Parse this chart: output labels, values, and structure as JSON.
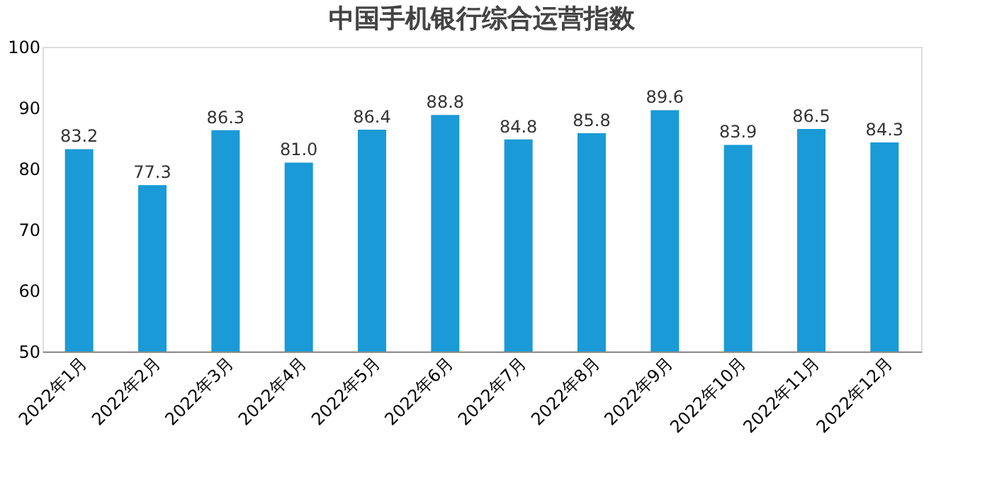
{
  "chart_data": {
    "type": "bar",
    "title": "中国手机银行综合运营指数",
    "categories": [
      "2022年1月",
      "2022年2月",
      "2022年3月",
      "2022年4月",
      "2022年5月",
      "2022年6月",
      "2022年7月",
      "2022年8月",
      "2022年9月",
      "2022年10月",
      "2022年11月",
      "2022年12月"
    ],
    "values": [
      83.2,
      77.3,
      86.3,
      81.0,
      86.4,
      88.8,
      84.8,
      85.8,
      89.6,
      83.9,
      86.5,
      84.3
    ],
    "value_labels": [
      "83.2",
      "77.3",
      "86.3",
      "81.0",
      "86.4",
      "88.8",
      "84.8",
      "85.8",
      "89.6",
      "83.9",
      "86.5",
      "84.3"
    ],
    "color": "#1a9ad6",
    "ylim": [
      50,
      100
    ],
    "yticks": [
      50,
      60,
      70,
      80,
      90,
      100
    ],
    "grid": false
  }
}
